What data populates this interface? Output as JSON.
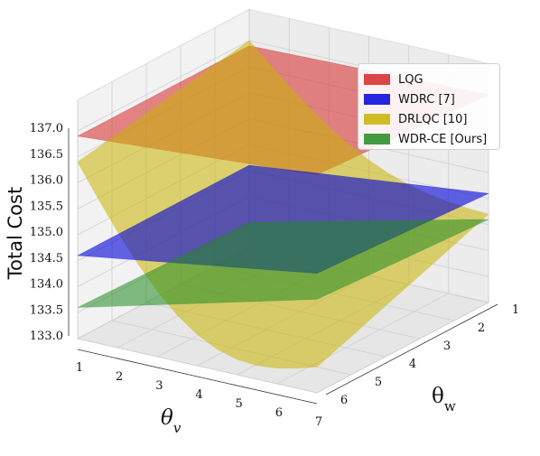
{
  "chart_data": {
    "type": "surface",
    "zlabel": "Total Cost",
    "xlabel_var": "θ",
    "xlabel_sub": "v",
    "ylabel_var": "θ",
    "ylabel_sub": "w",
    "x_ticks": [
      1,
      2,
      3,
      4,
      5,
      6,
      7
    ],
    "y_ticks": [
      1,
      2,
      3,
      4,
      5,
      6
    ],
    "z_ticks": [
      "133.0",
      "133.5",
      "134.0",
      "134.5",
      "135.0",
      "135.5",
      "136.0",
      "136.5",
      "137.0"
    ],
    "xlim": [
      1,
      7
    ],
    "ylim": [
      1,
      6
    ],
    "zlim": [
      133.0,
      137.0
    ],
    "grid": true,
    "legend_position": "top-right",
    "series": [
      {
        "name": "LQG",
        "color": "#d62728",
        "opacity": 0.55,
        "corners": {
          "x1y1": 136.9,
          "x7y1": 137.0,
          "x1y6": 136.9,
          "x7y6": 137.2
        }
      },
      {
        "name": "WDRC [7]",
        "color": "#0000d8",
        "opacity": 0.6,
        "corners": {
          "x1y1": 134.6,
          "x7y1": 135.1,
          "x1y6": 134.6,
          "x7y6": 135.3
        }
      },
      {
        "name": "DRLQC [10]",
        "color": "#c8b400",
        "opacity": 0.55,
        "corners": {
          "x1y1": 137.0,
          "x7y1": 134.1,
          "x1y6": 136.4,
          "x7y6": 132.9
        }
      },
      {
        "name": "WDR-CE [Ours]",
        "color": "#228b22",
        "opacity": 0.55,
        "corners": {
          "x1y1": 133.5,
          "x7y1": 134.6,
          "x1y6": 133.6,
          "x7y6": 134.8
        }
      }
    ]
  }
}
